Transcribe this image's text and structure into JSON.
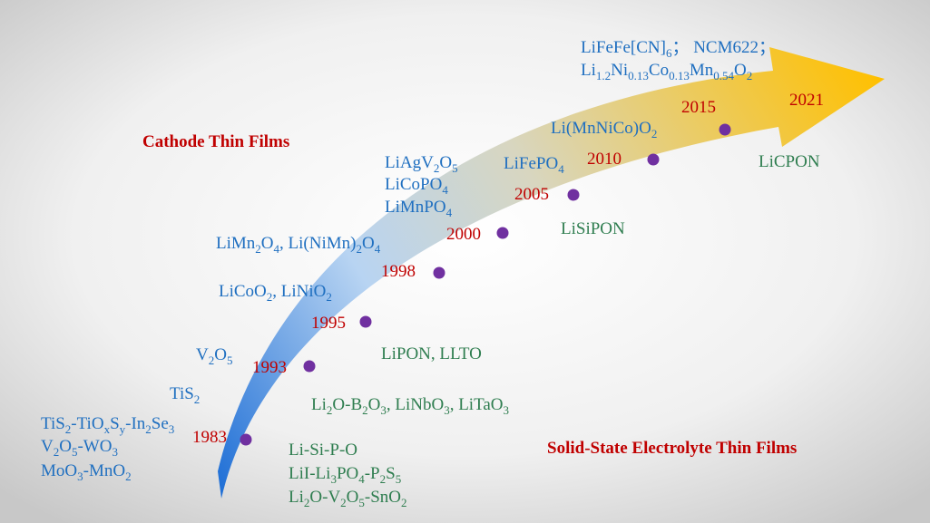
{
  "headings": {
    "cathode": "Cathode Thin Films",
    "electrolyte": "Solid-State Electrolyte Thin Films"
  },
  "years": [
    "1983",
    "1993",
    "1995",
    "1998",
    "2000",
    "2005",
    "2010",
    "2015",
    "2021"
  ],
  "cathode_materials": [
    [
      "TiS",
      "2",
      "-TiO",
      "x",
      "S",
      "y",
      "-In",
      "2",
      "Se",
      "3"
    ],
    [
      "V",
      "2",
      "O",
      "5",
      "-WO",
      "3"
    ],
    [
      "MoO",
      "3",
      "-MnO",
      "2"
    ],
    [
      "TiS",
      "2"
    ],
    [
      "V",
      "2",
      "O",
      "5"
    ],
    [
      "LiCoO",
      "2",
      ", LiNiO",
      "2"
    ],
    [
      "LiMn",
      "2",
      "O",
      "4",
      ", Li(NiMn)",
      "2",
      "O",
      "4"
    ],
    [
      "LiAgV",
      "2",
      "O",
      "5"
    ],
    [
      "LiCoPO",
      "4"
    ],
    [
      "LiMnPO",
      "4"
    ],
    [
      "LiFePO",
      "4"
    ],
    [
      "Li(MnNiCo)O",
      "2"
    ],
    [
      "LiFeFe[CN]",
      "6",
      "； NCM622；"
    ],
    [
      "Li",
      "1.2",
      "Ni",
      "0.13",
      "Co",
      "0.13",
      "Mn",
      "0.54",
      "O",
      "2"
    ]
  ],
  "electrolyte_materials": [
    [
      "Li-Si-P-O"
    ],
    [
      "LiI-Li",
      "3",
      "PO",
      "4",
      "-P",
      "2",
      "S",
      "5"
    ],
    [
      "Li",
      "2",
      "O-V",
      "2",
      "O",
      "5",
      "-SnO",
      "2"
    ],
    [
      "Li",
      "2",
      "O-B",
      "2",
      "O",
      "3",
      ",  LiNbO",
      "3",
      ", LiTaO",
      "3"
    ],
    [
      "LiPON, LLTO"
    ],
    [
      "LiSiPON"
    ],
    [
      "LiCPON"
    ]
  ]
}
